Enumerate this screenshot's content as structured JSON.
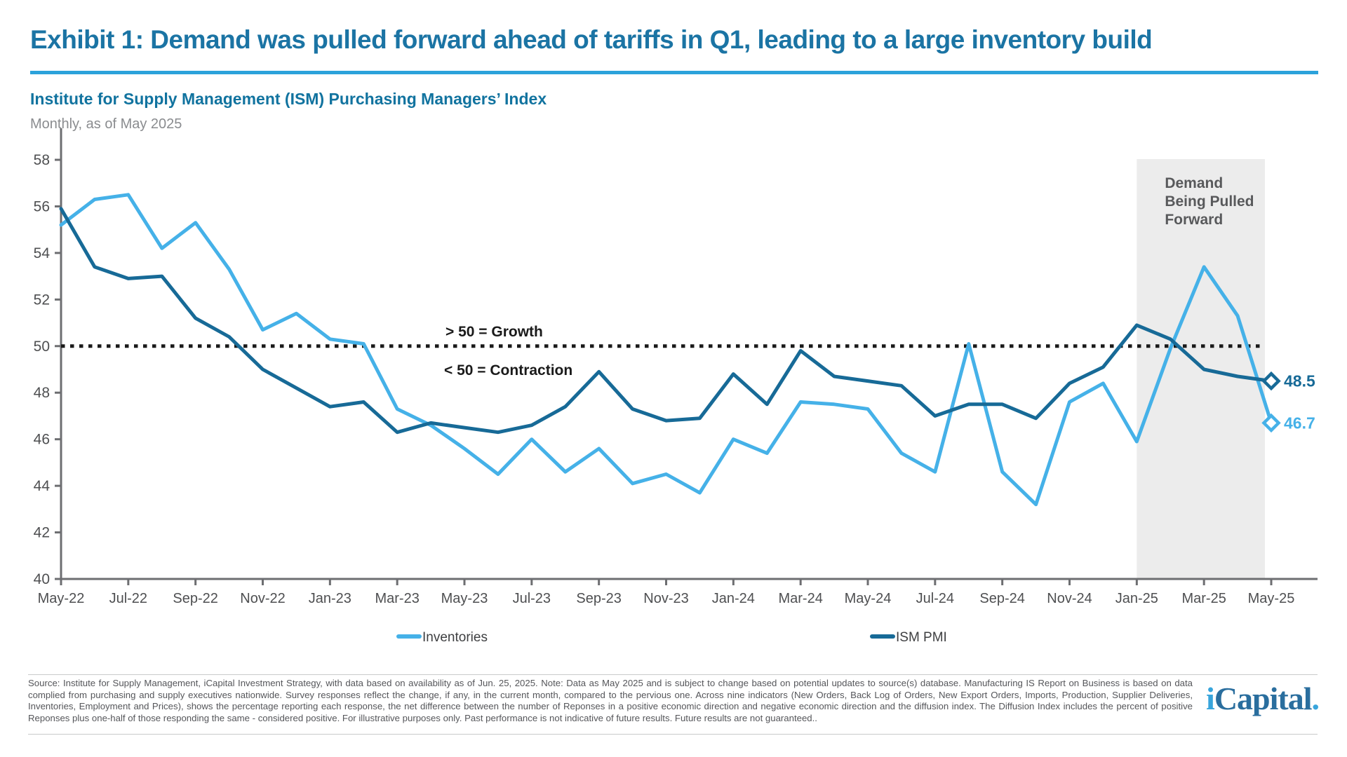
{
  "header": {
    "title": "Exhibit 1: Demand was pulled forward ahead of tariffs in Q1, leading to a large inventory build",
    "subtitle": "Institute for Supply Management (ISM) Purchasing Managers’ Index",
    "period_note": "Monthly, as of May 2025"
  },
  "chart_data": {
    "type": "line",
    "title": "Institute for Supply Management (ISM) Purchasing Managers’ Index",
    "subtitle": "Monthly, as of May 2025",
    "ylim": [
      40,
      58
    ],
    "ytick_step": 2,
    "ytick_labels": [
      "40",
      "42",
      "44",
      "46",
      "48",
      "50",
      "52",
      "54",
      "56",
      "58"
    ],
    "xtick_labels": [
      "May-22",
      "Jul-22",
      "Sep-22",
      "Nov-22",
      "Jan-23",
      "Mar-23",
      "May-23",
      "Jul-23",
      "Sep-23",
      "Nov-23",
      "Jan-24",
      "Mar-24",
      "May-24",
      "Jul-24",
      "Sep-24",
      "Nov-24",
      "Jan-25",
      "Mar-25",
      "May-25"
    ],
    "months": [
      "May-22",
      "Jun-22",
      "Jul-22",
      "Aug-22",
      "Sep-22",
      "Oct-22",
      "Nov-22",
      "Dec-22",
      "Jan-23",
      "Feb-23",
      "Mar-23",
      "Apr-23",
      "May-23",
      "Jun-23",
      "Jul-23",
      "Aug-23",
      "Sep-23",
      "Oct-23",
      "Nov-23",
      "Dec-23",
      "Jan-24",
      "Feb-24",
      "Mar-24",
      "Apr-24",
      "May-24",
      "Jun-24",
      "Jul-24",
      "Aug-24",
      "Sep-24",
      "Oct-24",
      "Nov-24",
      "Dec-24",
      "Jan-25",
      "Feb-25",
      "Mar-25",
      "Apr-25",
      "May-25"
    ],
    "series": [
      {
        "name": "Inventories",
        "color": "#45B1E8",
        "end_label": "46.7",
        "values": [
          55.2,
          56.3,
          56.5,
          54.2,
          55.3,
          53.3,
          50.7,
          51.4,
          50.3,
          50.1,
          47.3,
          46.6,
          45.6,
          44.5,
          46.0,
          44.6,
          45.6,
          44.1,
          44.5,
          43.7,
          46.0,
          45.4,
          47.6,
          47.5,
          47.3,
          45.4,
          44.6,
          50.1,
          44.6,
          43.2,
          47.6,
          48.4,
          45.9,
          49.9,
          53.4,
          51.3,
          46.7
        ]
      },
      {
        "name": "ISM PMI",
        "color": "#176A97",
        "end_label": "48.5",
        "values": [
          55.9,
          53.4,
          52.9,
          53.0,
          51.2,
          50.4,
          49.0,
          48.2,
          47.4,
          47.6,
          46.3,
          46.7,
          46.5,
          46.3,
          46.6,
          47.4,
          48.9,
          47.3,
          46.8,
          46.9,
          48.8,
          47.5,
          49.8,
          48.7,
          48.5,
          48.3,
          47.0,
          47.5,
          47.5,
          46.9,
          48.4,
          49.1,
          50.9,
          50.3,
          49.0,
          48.7,
          48.5
        ]
      }
    ],
    "threshold": {
      "value": 50,
      "above_label": "> 50 = Growth",
      "below_label": "< 50 = Contraction",
      "line_color": "#1A1A1A"
    },
    "shaded_region": {
      "start_month": "Jan-25",
      "end_month": "May-25",
      "color": "#ECECEC",
      "label_lines": [
        "Demand",
        "Being Pulled",
        "Forward"
      ],
      "label_color": "#58595B"
    },
    "legend": {
      "position": "bottom",
      "items": [
        "Inventories",
        "ISM PMI"
      ]
    },
    "grid": false
  },
  "footer": {
    "disclosure": "Source: Institute for Supply Management, iCapital Investment Strategy, with data based on availability as of Jun. 25, 2025. Note: Data as May 2025 and is subject to change based on potential updates to source(s) database. Manufacturing IS Report on Business is based on data complied from purchasing and supply executives nationwide. Survey responses reflect the change, if any, in the current month, compared to the pervious one. Across nine indicators (New Orders, Back Log of Orders, New Export Orders, Imports, Production, Supplier Deliveries, Inventories, Employment and Prices), shows the percentage reporting each response, the net difference between the number of Reponses in a positive economic direction and negative economic direction and the diffusion index. The Diffusion Index includes the percent of positive Reponses plus one-half of those responding the same - considered positive. For illustrative purposes only. Past performance is not indicative of future results. Future results are not guaranteed..",
    "logo": {
      "i": "i",
      "rest": "Capital",
      "dot": "."
    }
  }
}
